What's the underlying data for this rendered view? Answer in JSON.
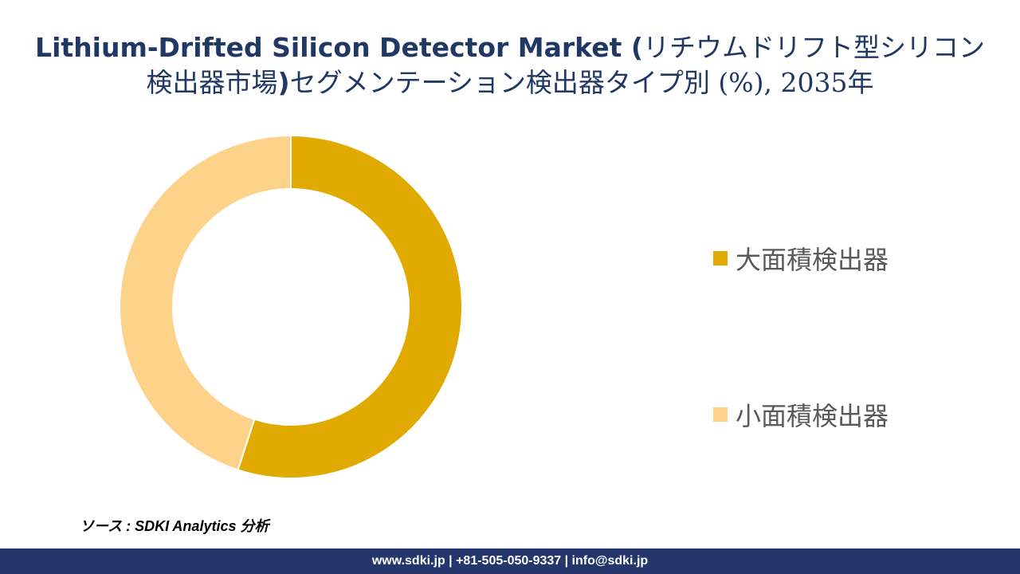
{
  "title": {
    "line1_en": "Lithium-Drifted Silicon Detector Market (",
    "line1_jp": "リチウムドリフト型シリコン",
    "line2_jp_a": "検出器市場",
    "line2_en": ")",
    "line2_jp_b": "セグメンテーション検出器タイプ別 (%), 2035年"
  },
  "chart_data": {
    "type": "pie",
    "donut": true,
    "categories": [
      "大面積検出器",
      "小面積検出器"
    ],
    "values": [
      55,
      45
    ],
    "colors": [
      "#e0aa00",
      "#fdd38a"
    ],
    "legend_position": "right"
  },
  "source": "ソース : SDKI Analytics 分析",
  "footer": "www.sdki.jp | +81-505-050-9337 | info@sdki.jp"
}
